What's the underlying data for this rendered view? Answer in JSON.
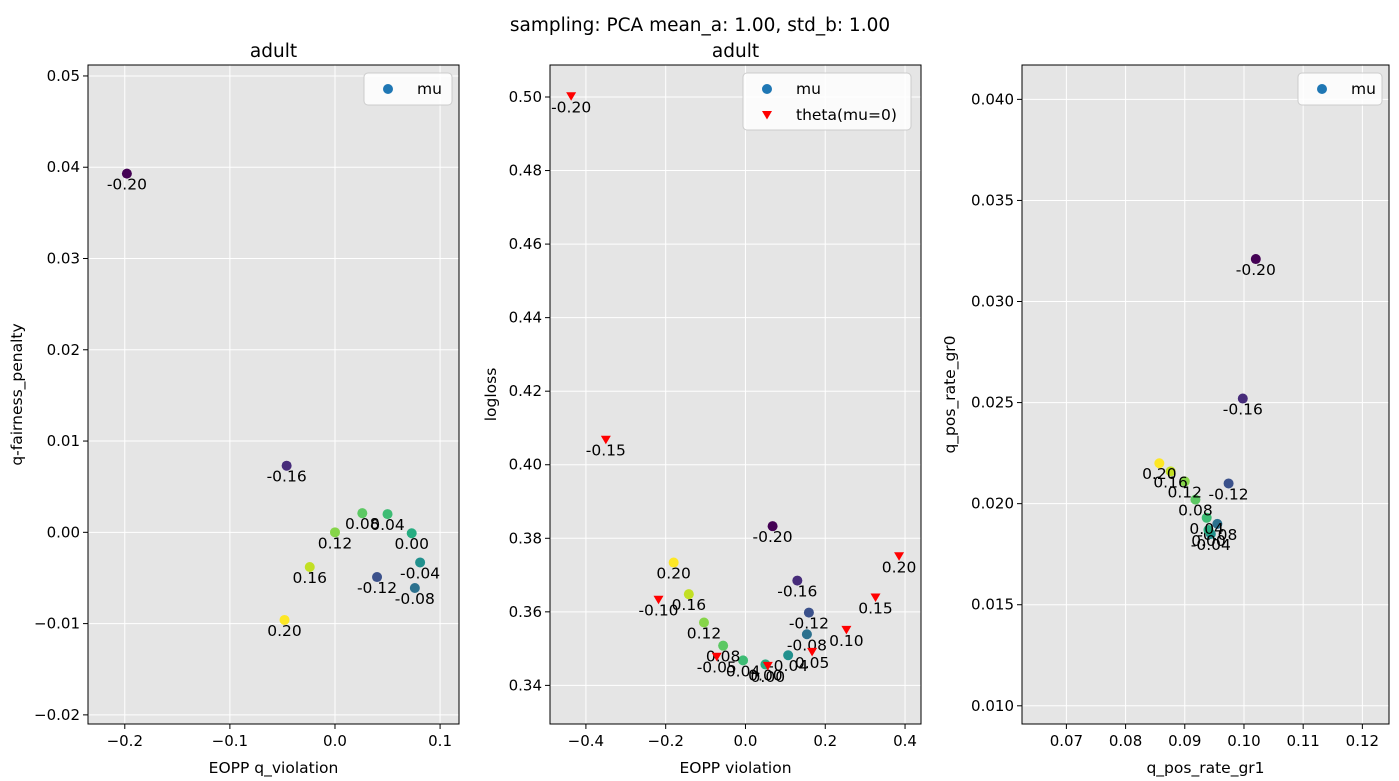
{
  "suptitle": "sampling: PCA mean_a: 1.00, std_b: 1.00",
  "colors": {
    "axes_bg": "#e5e5e5",
    "grid": "#ffffff",
    "mu_legend": "#1f77b4",
    "theta": "#ff0000"
  },
  "chart_data": [
    {
      "type": "scatter",
      "title": "adult",
      "xlabel": "EOPP q_violation",
      "ylabel": "q-fairness_penalty",
      "xlim": [
        -0.235,
        0.118
      ],
      "ylim": [
        -0.021,
        0.0512
      ],
      "xticks": [
        -0.2,
        -0.1,
        0.0,
        0.1
      ],
      "xtick_labels": [
        "−0.2",
        "−0.1",
        "0.0",
        "0.1"
      ],
      "yticks": [
        -0.02,
        -0.01,
        0.0,
        0.01,
        0.02,
        0.03,
        0.04,
        0.05
      ],
      "ytick_labels": [
        "−0.02",
        "−0.01",
        "0.00",
        "0.01",
        "0.02",
        "0.03",
        "0.04",
        "0.05"
      ],
      "grid": true,
      "legend_position": "upper-right",
      "series": [
        {
          "name": "mu",
          "marker": "circle",
          "legend_color": "#1f77b4",
          "points": [
            {
              "x": -0.198,
              "y": 0.0393,
              "label": "-0.20",
              "color": "#440154"
            },
            {
              "x": -0.046,
              "y": 0.0073,
              "label": "-0.16",
              "color": "#472c7a"
            },
            {
              "x": 0.04,
              "y": -0.0049,
              "label": "-0.12",
              "color": "#3b518b"
            },
            {
              "x": 0.076,
              "y": -0.0061,
              "label": "-0.08",
              "color": "#2c718e"
            },
            {
              "x": 0.081,
              "y": -0.0033,
              "label": "-0.04",
              "color": "#21908d"
            },
            {
              "x": 0.073,
              "y": -0.0001,
              "label": "0.00",
              "color": "#27ad81"
            },
            {
              "x": 0.05,
              "y": 0.002,
              "label": "0.04",
              "color": "#3dbc74"
            },
            {
              "x": 0.026,
              "y": 0.0021,
              "label": "0.08",
              "color": "#5cc863"
            },
            {
              "x": 0.0,
              "y": 0.0,
              "label": "0.12",
              "color": "#86d549"
            },
            {
              "x": -0.024,
              "y": -0.0038,
              "label": "0.16",
              "color": "#c2df23"
            },
            {
              "x": -0.048,
              "y": -0.0096,
              "label": "0.20",
              "color": "#fde725"
            }
          ]
        }
      ]
    },
    {
      "type": "scatter",
      "title": "adult",
      "xlabel": "EOPP violation",
      "ylabel": "logloss",
      "xlim": [
        -0.49,
        0.44
      ],
      "ylim": [
        0.3295,
        0.5087
      ],
      "xticks": [
        -0.4,
        -0.2,
        0.0,
        0.2,
        0.4
      ],
      "xtick_labels": [
        "−0.4",
        "−0.2",
        "0.0",
        "0.2",
        "0.4"
      ],
      "yticks": [
        0.34,
        0.36,
        0.38,
        0.4,
        0.42,
        0.44,
        0.46,
        0.48,
        0.5
      ],
      "ytick_labels": [
        "0.34",
        "0.36",
        "0.38",
        "0.40",
        "0.42",
        "0.44",
        "0.46",
        "0.48",
        "0.50"
      ],
      "grid": true,
      "legend_position": "upper-right",
      "series": [
        {
          "name": "mu",
          "marker": "circle",
          "legend_color": "#1f77b4",
          "points": [
            {
              "x": 0.068,
              "y": 0.3833,
              "label": "-0.20",
              "color": "#440154"
            },
            {
              "x": 0.13,
              "y": 0.3685,
              "label": "-0.16",
              "color": "#472c7a"
            },
            {
              "x": 0.159,
              "y": 0.3598,
              "label": "-0.12",
              "color": "#3b518b"
            },
            {
              "x": 0.154,
              "y": 0.3539,
              "label": "-0.08",
              "color": "#2c718e"
            },
            {
              "x": 0.107,
              "y": 0.3482,
              "label": "-0.04",
              "color": "#21908d"
            },
            {
              "x": 0.05,
              "y": 0.3457,
              "label": "0.00",
              "color": "#27ad81"
            },
            {
              "x": -0.006,
              "y": 0.3468,
              "label": "0.04",
              "color": "#3dbc74"
            },
            {
              "x": -0.056,
              "y": 0.3508,
              "label": "0.08",
              "color": "#5cc863"
            },
            {
              "x": -0.104,
              "y": 0.3571,
              "label": "0.12",
              "color": "#86d549"
            },
            {
              "x": -0.142,
              "y": 0.3648,
              "label": "0.16",
              "color": "#c2df23"
            },
            {
              "x": -0.18,
              "y": 0.3734,
              "label": "0.20",
              "color": "#fde725"
            }
          ]
        },
        {
          "name": "theta(mu=0)",
          "marker": "triangle-down",
          "legend_color": "#ff0000",
          "points": [
            {
              "x": -0.437,
              "y": 0.5002,
              "label": "-0.20"
            },
            {
              "x": -0.35,
              "y": 0.4068,
              "label": "-0.15"
            },
            {
              "x": -0.218,
              "y": 0.3633,
              "label": "-0.10"
            },
            {
              "x": -0.072,
              "y": 0.3478,
              "label": "-0.05"
            },
            {
              "x": 0.056,
              "y": 0.3453,
              "label": "0.00"
            },
            {
              "x": 0.167,
              "y": 0.3491,
              "label": "0.05"
            },
            {
              "x": 0.253,
              "y": 0.3551,
              "label": "0.10"
            },
            {
              "x": 0.326,
              "y": 0.3639,
              "label": "0.15"
            },
            {
              "x": 0.385,
              "y": 0.3751,
              "label": "0.20"
            }
          ]
        }
      ]
    },
    {
      "type": "scatter",
      "title": "",
      "xlabel": "q_pos_rate_gr1",
      "ylabel": "q_pos_rate_gr0",
      "xlim": [
        0.0625,
        0.1245
      ],
      "ylim": [
        0.0091,
        0.0417
      ],
      "xticks": [
        0.07,
        0.08,
        0.09,
        0.1,
        0.11,
        0.12
      ],
      "xtick_labels": [
        "0.07",
        "0.08",
        "0.09",
        "0.10",
        "0.11",
        "0.12"
      ],
      "yticks": [
        0.01,
        0.015,
        0.02,
        0.025,
        0.03,
        0.035,
        0.04
      ],
      "ytick_labels": [
        "0.010",
        "0.015",
        "0.020",
        "0.025",
        "0.030",
        "0.035",
        "0.040"
      ],
      "grid": true,
      "legend_position": "upper-right",
      "series": [
        {
          "name": "mu",
          "marker": "circle",
          "legend_color": "#1f77b4",
          "points": [
            {
              "x": 0.102,
              "y": 0.0321,
              "label": "-0.20",
              "color": "#440154"
            },
            {
              "x": 0.0998,
              "y": 0.0252,
              "label": "-0.16",
              "color": "#472c7a"
            },
            {
              "x": 0.0974,
              "y": 0.021,
              "label": "-0.12",
              "color": "#3b518b"
            },
            {
              "x": 0.0955,
              "y": 0.019,
              "label": "-0.08",
              "color": "#2c718e"
            },
            {
              "x": 0.0944,
              "y": 0.0185,
              "label": "-0.04",
              "color": "#21908d"
            },
            {
              "x": 0.094,
              "y": 0.0187,
              "label": "0.00",
              "color": "#27ad81"
            },
            {
              "x": 0.0937,
              "y": 0.0193,
              "label": "0.04",
              "color": "#3dbc74"
            },
            {
              "x": 0.0918,
              "y": 0.0202,
              "label": "0.08",
              "color": "#5cc863"
            },
            {
              "x": 0.09,
              "y": 0.0211,
              "label": "0.12",
              "color": "#86d549"
            },
            {
              "x": 0.0876,
              "y": 0.0216,
              "label": "0.16",
              "color": "#c2df23"
            },
            {
              "x": 0.0857,
              "y": 0.022,
              "label": "0.20",
              "color": "#fde725"
            }
          ]
        }
      ]
    }
  ]
}
